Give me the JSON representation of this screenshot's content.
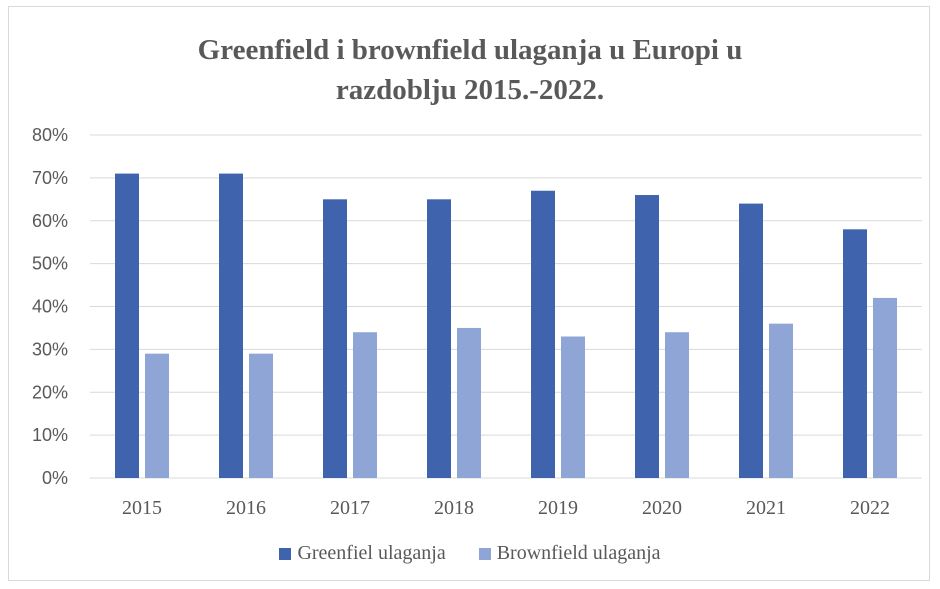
{
  "chart_data": {
    "type": "bar",
    "title_lines": [
      "Greenfield i brownfield ulaganja u Europi u",
      "razdoblju 2015.-2022."
    ],
    "categories": [
      "2015",
      "2016",
      "2017",
      "2018",
      "2019",
      "2020",
      "2021",
      "2022"
    ],
    "series": [
      {
        "name": "Greenfiel ulaganja",
        "color": "#3f64ad",
        "values": [
          0.71,
          0.71,
          0.65,
          0.65,
          0.67,
          0.66,
          0.64,
          0.58
        ]
      },
      {
        "name": "Brownfield ulaganja",
        "color": "#8fa5d6",
        "values": [
          0.29,
          0.29,
          0.34,
          0.35,
          0.33,
          0.34,
          0.36,
          0.42
        ]
      }
    ],
    "ylim": [
      0,
      0.8
    ],
    "yticks": [
      "0%",
      "10%",
      "20%",
      "30%",
      "40%",
      "50%",
      "60%",
      "70%",
      "80%"
    ],
    "grid": true,
    "legend_position": "bottom"
  }
}
